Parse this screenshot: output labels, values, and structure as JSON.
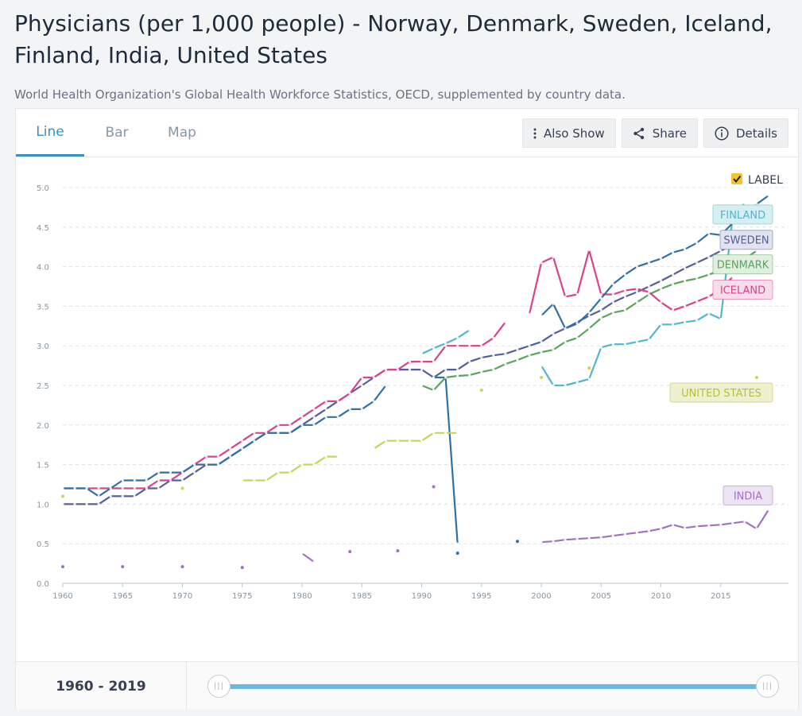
{
  "title": "Physicians (per 1,000 people) - Norway, Denmark, Sweden, Iceland, Finland, India, United States",
  "source": "World Health Organization's Global Health Workforce Statistics, OECD, supplemented by country data.",
  "tabs": [
    {
      "label": "Line",
      "active": true
    },
    {
      "label": "Bar",
      "active": false
    },
    {
      "label": "Map",
      "active": false
    }
  ],
  "actions": {
    "also_show": "Also Show",
    "share": "Share",
    "details": "Details"
  },
  "label_toggle": {
    "label": "LABEL",
    "checked": true
  },
  "range": {
    "label": "1960 - 2019",
    "start": 1960,
    "end": 2019
  },
  "chart_data": {
    "type": "line",
    "title": "",
    "xlabel": "",
    "ylabel": "",
    "xlim": [
      1960,
      2019
    ],
    "ylim": [
      0,
      5
    ],
    "x_ticks": [
      1960,
      1965,
      1970,
      1975,
      1980,
      1985,
      1990,
      1995,
      2000,
      2005,
      2010,
      2015
    ],
    "y_ticks": [
      "0.0",
      "0.5",
      "1.0",
      "1.5",
      "2.0",
      "2.5",
      "3.0",
      "3.5",
      "4.0",
      "4.5",
      "5.0"
    ],
    "grid": "horizontal-dashed",
    "series": [
      {
        "name": "FINLAND",
        "color": "#4fb8c9",
        "label_color": "#4fb8c9",
        "label_bg": "#d5eff3",
        "label_y": 4.66,
        "points": [
          [
            1990,
            2.9
          ],
          [
            1991,
            2.97
          ],
          [
            1992,
            3.03
          ],
          [
            1993,
            3.1
          ],
          [
            1994,
            3.2
          ],
          [
            null,
            null
          ],
          [
            2000,
            2.75
          ],
          [
            2001,
            2.5
          ],
          [
            2002,
            2.5
          ],
          [
            2003,
            2.54
          ],
          [
            2004,
            2.58
          ],
          [
            2005,
            2.98
          ],
          [
            2006,
            3.02
          ],
          [
            2007,
            3.02
          ],
          [
            2008,
            3.05
          ],
          [
            2009,
            3.08
          ],
          [
            2010,
            3.27
          ],
          [
            2011,
            3.27
          ],
          [
            2012,
            3.3
          ],
          [
            2013,
            3.32
          ],
          [
            2014,
            3.41
          ],
          [
            2015,
            3.34
          ],
          [
            2016,
            4.63
          ],
          [
            2017,
            4.8
          ]
        ]
      },
      {
        "name": "SWEDEN",
        "color": "#555f96",
        "label_color": "#555f96",
        "label_bg": "#e1e3f1",
        "label_y": 4.34,
        "points": [
          [
            1960,
            1.0
          ],
          [
            1961,
            1.0
          ],
          [
            1962,
            1.0
          ],
          [
            1963,
            1.0
          ],
          [
            1964,
            1.1
          ],
          [
            1965,
            1.1
          ],
          [
            1966,
            1.1
          ],
          [
            1967,
            1.2
          ],
          [
            1968,
            1.2
          ],
          [
            1969,
            1.3
          ],
          [
            1970,
            1.3
          ],
          [
            1971,
            1.4
          ],
          [
            1972,
            1.5
          ],
          [
            1973,
            1.5
          ],
          [
            1974,
            1.6
          ],
          [
            1975,
            1.7
          ],
          [
            1976,
            1.8
          ],
          [
            1977,
            1.9
          ],
          [
            1978,
            1.9
          ],
          [
            1979,
            1.9
          ],
          [
            1980,
            2.0
          ],
          [
            1981,
            2.1
          ],
          [
            1982,
            2.2
          ],
          [
            1983,
            2.3
          ],
          [
            1984,
            2.4
          ],
          [
            1985,
            2.5
          ],
          [
            1986,
            2.6
          ],
          [
            1987,
            2.7
          ],
          [
            1988,
            2.7
          ],
          [
            1989,
            2.7
          ],
          [
            1990,
            2.7
          ],
          [
            1991,
            2.6
          ],
          [
            1992,
            2.7
          ],
          [
            1993,
            2.7
          ],
          [
            1994,
            2.8
          ],
          [
            1995,
            2.85
          ],
          [
            1996,
            2.88
          ],
          [
            1997,
            2.9
          ],
          [
            1998,
            2.95
          ],
          [
            1999,
            3.0
          ],
          [
            2000,
            3.05
          ],
          [
            2001,
            3.15
          ],
          [
            2002,
            3.22
          ],
          [
            2003,
            3.3
          ],
          [
            2004,
            3.38
          ],
          [
            2005,
            3.45
          ],
          [
            2006,
            3.55
          ],
          [
            2007,
            3.62
          ],
          [
            2008,
            3.68
          ],
          [
            2009,
            3.75
          ],
          [
            2010,
            3.82
          ],
          [
            2011,
            3.9
          ],
          [
            2012,
            3.98
          ],
          [
            2013,
            4.05
          ],
          [
            2014,
            4.12
          ],
          [
            2015,
            4.2
          ],
          [
            2016,
            4.28
          ],
          [
            2017,
            4.4
          ]
        ]
      },
      {
        "name": "DENMARK",
        "color": "#5aa45d",
        "label_color": "#5aa45d",
        "label_bg": "#e0efe0",
        "label_y": 4.03,
        "points": [
          [
            1990,
            2.5
          ],
          [
            1991,
            2.44
          ],
          [
            1992,
            2.6
          ],
          [
            1993,
            2.62
          ],
          [
            1994,
            2.63
          ],
          [
            1995,
            2.67
          ],
          [
            1996,
            2.7
          ],
          [
            1997,
            2.77
          ],
          [
            1998,
            2.82
          ],
          [
            1999,
            2.88
          ],
          [
            2000,
            2.92
          ],
          [
            2001,
            2.95
          ],
          [
            2002,
            3.05
          ],
          [
            2003,
            3.1
          ],
          [
            2004,
            3.22
          ],
          [
            2005,
            3.35
          ],
          [
            2006,
            3.42
          ],
          [
            2007,
            3.45
          ],
          [
            2008,
            3.55
          ],
          [
            2009,
            3.65
          ],
          [
            2010,
            3.72
          ],
          [
            2011,
            3.78
          ],
          [
            2012,
            3.82
          ],
          [
            2013,
            3.85
          ],
          [
            2014,
            3.9
          ],
          [
            2015,
            3.95
          ],
          [
            2016,
            4.01
          ],
          [
            2017,
            4.1
          ],
          [
            2018,
            4.2
          ]
        ]
      },
      {
        "name": "ICELAND",
        "color": "#d9428d",
        "label_color": "#d9428d",
        "label_bg": "#f7dcea",
        "label_y": 3.71,
        "points": [
          [
            1960,
            1.2
          ],
          [
            1961,
            1.2
          ],
          [
            1962,
            1.2
          ],
          [
            1963,
            1.2
          ],
          [
            1964,
            1.2
          ],
          [
            1965,
            1.2
          ],
          [
            1966,
            1.2
          ],
          [
            1967,
            1.2
          ],
          [
            1968,
            1.3
          ],
          [
            1969,
            1.3
          ],
          [
            1970,
            1.4
          ],
          [
            1971,
            1.5
          ],
          [
            1972,
            1.6
          ],
          [
            1973,
            1.6
          ],
          [
            1974,
            1.7
          ],
          [
            1975,
            1.8
          ],
          [
            1976,
            1.9
          ],
          [
            1977,
            1.9
          ],
          [
            1978,
            2.0
          ],
          [
            1979,
            2.0
          ],
          [
            1980,
            2.1
          ],
          [
            1981,
            2.2
          ],
          [
            1982,
            2.3
          ],
          [
            1983,
            2.3
          ],
          [
            1984,
            2.4
          ],
          [
            1985,
            2.6
          ],
          [
            1986,
            2.6
          ],
          [
            1987,
            2.7
          ],
          [
            1988,
            2.7
          ],
          [
            1989,
            2.8
          ],
          [
            1990,
            2.8
          ],
          [
            1991,
            2.8
          ],
          [
            1992,
            3.0
          ],
          [
            1993,
            3.0
          ],
          [
            1994,
            3.0
          ],
          [
            1995,
            3.0
          ],
          [
            1996,
            3.1
          ],
          [
            1997,
            3.3
          ],
          [
            null,
            null
          ],
          [
            1999,
            3.4
          ],
          [
            2000,
            4.05
          ],
          [
            2001,
            4.12
          ],
          [
            2002,
            3.62
          ],
          [
            2003,
            3.65
          ],
          [
            2004,
            4.21
          ],
          [
            2005,
            3.65
          ],
          [
            2006,
            3.65
          ],
          [
            2007,
            3.7
          ],
          [
            2008,
            3.72
          ],
          [
            2009,
            3.68
          ],
          [
            2010,
            3.55
          ],
          [
            2011,
            3.45
          ],
          [
            2012,
            3.5
          ],
          [
            2013,
            3.56
          ],
          [
            2014,
            3.62
          ],
          [
            2015,
            3.72
          ],
          [
            2016,
            3.87
          ]
        ]
      },
      {
        "name": "NORWAY",
        "color": "#3170a3",
        "label_color": null,
        "label_bg": null,
        "label_y": null,
        "points": [
          [
            1960,
            1.2
          ],
          [
            1961,
            1.2
          ],
          [
            1962,
            1.2
          ],
          [
            1963,
            1.1
          ],
          [
            1964,
            1.2
          ],
          [
            1965,
            1.3
          ],
          [
            1966,
            1.3
          ],
          [
            1967,
            1.3
          ],
          [
            1968,
            1.4
          ],
          [
            1969,
            1.4
          ],
          [
            1970,
            1.4
          ],
          [
            1971,
            1.5
          ],
          [
            1972,
            1.5
          ],
          [
            1973,
            1.5
          ],
          [
            1974,
            1.6
          ],
          [
            1975,
            1.7
          ],
          [
            1976,
            1.8
          ],
          [
            1977,
            1.9
          ],
          [
            1978,
            1.9
          ],
          [
            1979,
            1.9
          ],
          [
            1980,
            2.0
          ],
          [
            1981,
            2.0
          ],
          [
            1982,
            2.1
          ],
          [
            1983,
            2.1
          ],
          [
            1984,
            2.2
          ],
          [
            1985,
            2.2
          ],
          [
            1986,
            2.3
          ],
          [
            1987,
            2.5
          ],
          [
            null,
            null
          ],
          [
            1991,
            2.6
          ],
          [
            1992,
            2.6
          ],
          [
            1993,
            0.5
          ],
          [
            null,
            null
          ],
          [
            2000,
            3.38
          ],
          [
            2001,
            3.53
          ],
          [
            2002,
            3.22
          ],
          [
            2003,
            3.28
          ],
          [
            2004,
            3.42
          ],
          [
            2005,
            3.6
          ],
          [
            2006,
            3.78
          ],
          [
            2007,
            3.9
          ],
          [
            2008,
            4.0
          ],
          [
            2009,
            4.05
          ],
          [
            2010,
            4.1
          ],
          [
            2011,
            4.18
          ],
          [
            2012,
            4.22
          ],
          [
            2013,
            4.3
          ],
          [
            2014,
            4.42
          ],
          [
            2015,
            4.4
          ],
          [
            2016,
            4.55
          ],
          [
            2017,
            4.65
          ],
          [
            2018,
            4.79
          ],
          [
            2019,
            4.9
          ]
        ]
      },
      {
        "name": "UNITED STATES",
        "color": "#c8d45a",
        "label_color": "#b5bf3f",
        "label_bg": "#eef0cf",
        "label_y": 2.41,
        "points": [
          [
            1975,
            1.3
          ],
          [
            1976,
            1.3
          ],
          [
            1977,
            1.3
          ],
          [
            1978,
            1.4
          ],
          [
            1979,
            1.4
          ],
          [
            1980,
            1.5
          ],
          [
            1981,
            1.5
          ],
          [
            1982,
            1.6
          ],
          [
            1983,
            1.6
          ],
          [
            null,
            null
          ],
          [
            1986,
            1.7
          ],
          [
            1987,
            1.8
          ],
          [
            1988,
            1.8
          ],
          [
            1989,
            1.8
          ],
          [
            1990,
            1.8
          ],
          [
            1991,
            1.9
          ],
          [
            1992,
            1.9
          ],
          [
            1993,
            1.9
          ]
        ]
      },
      {
        "name": "INDIA",
        "color": "#a170c0",
        "label_color": "#a170c0",
        "label_bg": "#ede3f4",
        "label_y": 1.11,
        "points": [
          [
            1980,
            0.38
          ],
          [
            1981,
            0.27
          ],
          [
            null,
            null
          ],
          [
            2000,
            0.52
          ],
          [
            2001,
            0.53
          ],
          [
            2002,
            0.55
          ],
          [
            2003,
            0.56
          ],
          [
            2004,
            0.57
          ],
          [
            2005,
            0.58
          ],
          [
            2006,
            0.6
          ],
          [
            2007,
            0.62
          ],
          [
            2008,
            0.64
          ],
          [
            2009,
            0.66
          ],
          [
            2010,
            0.69
          ],
          [
            2011,
            0.74
          ],
          [
            2012,
            0.7
          ],
          [
            2013,
            0.72
          ],
          [
            2014,
            0.73
          ],
          [
            2015,
            0.74
          ],
          [
            2016,
            0.76
          ],
          [
            2017,
            0.78
          ],
          [
            2018,
            0.69
          ],
          [
            2019,
            0.93
          ]
        ]
      }
    ],
    "isolated_points": [
      {
        "series": "FINLAND",
        "points": []
      },
      {
        "series": "NORWAY",
        "points": [
          [
            1993,
            0.38
          ],
          [
            1998,
            0.53
          ]
        ]
      },
      {
        "series": "UNITED STATES",
        "points": [
          [
            1960,
            1.1
          ],
          [
            1970,
            1.2
          ],
          [
            1995,
            2.44
          ],
          [
            2000,
            2.6
          ],
          [
            2004,
            2.72
          ],
          [
            2018,
            2.6
          ]
        ]
      },
      {
        "series": "INDIA",
        "points": [
          [
            1960,
            0.21
          ],
          [
            1965,
            0.21
          ],
          [
            1970,
            0.21
          ],
          [
            1975,
            0.2
          ],
          [
            1984,
            0.4
          ],
          [
            1988,
            0.41
          ],
          [
            1991,
            1.22
          ]
        ]
      }
    ]
  }
}
